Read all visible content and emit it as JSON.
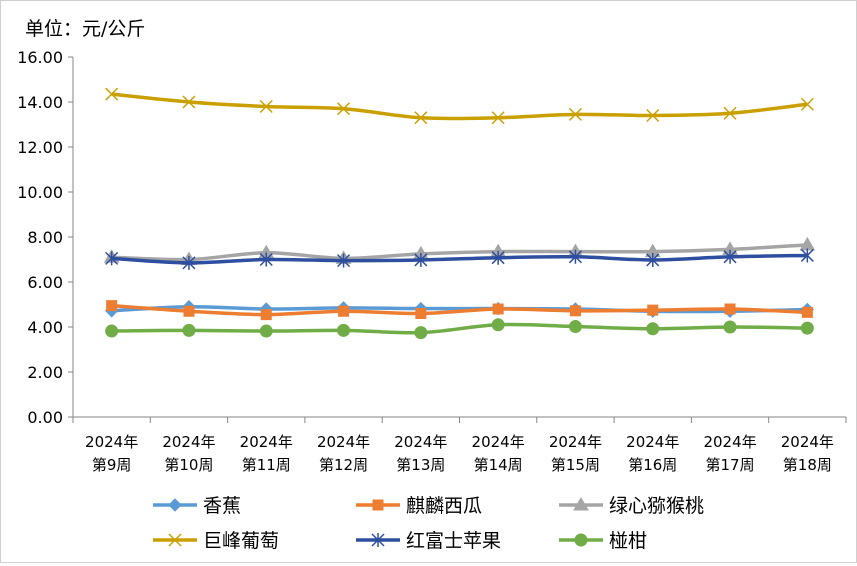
{
  "chart_data": {
    "type": "line",
    "unit_label": "单位：元/公斤",
    "categories": [
      [
        "2024年",
        "第9周"
      ],
      [
        "2024年",
        "第10周"
      ],
      [
        "2024年",
        "第11周"
      ],
      [
        "2024年",
        "第12周"
      ],
      [
        "2024年",
        "第13周"
      ],
      [
        "2024年",
        "第14周"
      ],
      [
        "2024年",
        "第15周"
      ],
      [
        "2024年",
        "第16周"
      ],
      [
        "2024年",
        "第17周"
      ],
      [
        "2024年",
        "第18周"
      ]
    ],
    "ylim": [
      0,
      16
    ],
    "yticks": [
      "0.00",
      "2.00",
      "4.00",
      "6.00",
      "8.00",
      "10.00",
      "12.00",
      "14.00",
      "16.00"
    ],
    "grid": false,
    "legend_position": "bottom",
    "series": [
      {
        "name": "香蕉",
        "color": "#5b9bd5",
        "marker": "diamond",
        "values": [
          4.72,
          4.9,
          4.8,
          4.85,
          4.82,
          4.82,
          4.8,
          4.7,
          4.7,
          4.78
        ]
      },
      {
        "name": "麒麟西瓜",
        "color": "#ed7d31",
        "marker": "square",
        "values": [
          4.95,
          4.7,
          4.55,
          4.7,
          4.6,
          4.8,
          4.72,
          4.75,
          4.8,
          4.65
        ]
      },
      {
        "name": "绿心猕猴桃",
        "color": "#a5a5a5",
        "marker": "triangle",
        "values": [
          7.1,
          7.0,
          7.3,
          7.05,
          7.25,
          7.35,
          7.35,
          7.35,
          7.45,
          7.65
        ]
      },
      {
        "name": "巨峰葡萄",
        "color": "#c9a000",
        "marker": "x",
        "values": [
          14.35,
          14.0,
          13.8,
          13.7,
          13.3,
          13.3,
          13.45,
          13.4,
          13.5,
          13.9
        ]
      },
      {
        "name": "红富士苹果",
        "color": "#2e4fa0",
        "marker": "star",
        "values": [
          7.05,
          6.85,
          7.0,
          6.95,
          6.98,
          7.08,
          7.12,
          6.98,
          7.12,
          7.18
        ]
      },
      {
        "name": "椪柑",
        "color": "#70ad47",
        "marker": "circle",
        "values": [
          3.82,
          3.85,
          3.82,
          3.85,
          3.75,
          4.1,
          4.02,
          3.92,
          4.0,
          3.95
        ]
      }
    ]
  }
}
